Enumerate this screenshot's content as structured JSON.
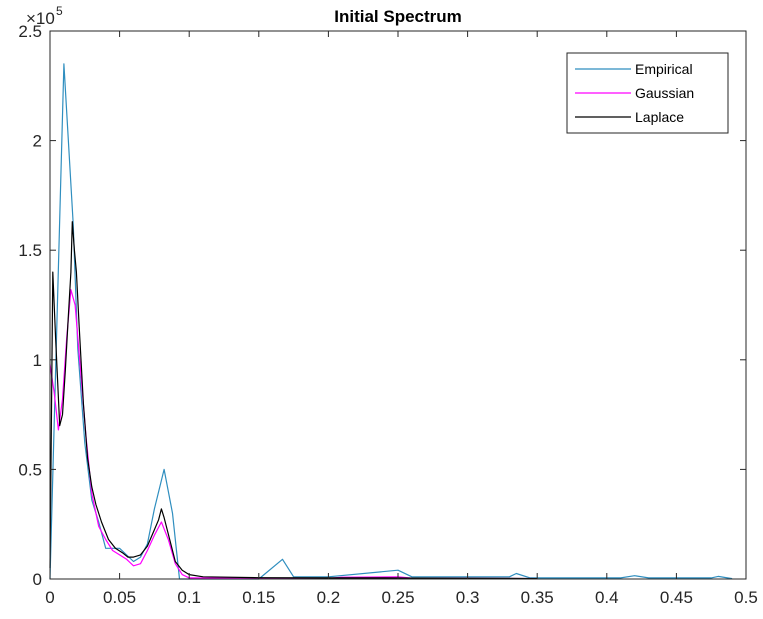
{
  "chart_data": {
    "type": "line",
    "title": "Initial Spectrum",
    "xlabel": "",
    "ylabel": "",
    "xlim": [
      0,
      0.5
    ],
    "ylim": [
      0,
      2.5
    ],
    "y_multiplier_label": "×10",
    "y_multiplier_exponent": "5",
    "x_ticks": [
      "0",
      "0.05",
      "0.1",
      "0.15",
      "0.2",
      "0.25",
      "0.3",
      "0.35",
      "0.4",
      "0.45",
      "0.5"
    ],
    "y_ticks": [
      "0",
      "0.5",
      "1",
      "1.5",
      "2",
      "2.5"
    ],
    "grid": false,
    "legend_position": "top-right",
    "series": [
      {
        "name": "Empirical",
        "color": "#2f8ebf",
        "points": [
          [
            0,
            0
          ],
          [
            0.01,
            2.35
          ],
          [
            0.0167,
            1.62
          ],
          [
            0.02,
            1.05
          ],
          [
            0.025,
            0.62
          ],
          [
            0.03,
            0.36
          ],
          [
            0.035,
            0.26
          ],
          [
            0.04,
            0.14
          ],
          [
            0.05,
            0.14
          ],
          [
            0.055,
            0.11
          ],
          [
            0.06,
            0.08
          ],
          [
            0.065,
            0.1
          ],
          [
            0.07,
            0.16
          ],
          [
            0.075,
            0.32
          ],
          [
            0.082,
            0.5
          ],
          [
            0.088,
            0.3
          ],
          [
            0.093,
            0.0
          ],
          [
            0.15,
            0.0
          ],
          [
            0.167,
            0.09
          ],
          [
            0.175,
            0.01
          ],
          [
            0.2,
            0.01
          ],
          [
            0.25,
            0.04
          ],
          [
            0.26,
            0.01
          ],
          [
            0.33,
            0.01
          ],
          [
            0.335,
            0.025
          ],
          [
            0.345,
            0.005
          ],
          [
            0.41,
            0.005
          ],
          [
            0.42,
            0.015
          ],
          [
            0.43,
            0.005
          ],
          [
            0.475,
            0.005
          ],
          [
            0.48,
            0.012
          ],
          [
            0.49,
            0.002
          ]
        ]
      },
      {
        "name": "Gaussian",
        "color": "#ff00ff",
        "points": [
          [
            0,
            0.98
          ],
          [
            0.003,
            0.85
          ],
          [
            0.006,
            0.68
          ],
          [
            0.009,
            0.82
          ],
          [
            0.012,
            1.1
          ],
          [
            0.015,
            1.32
          ],
          [
            0.018,
            1.25
          ],
          [
            0.022,
            0.95
          ],
          [
            0.026,
            0.64
          ],
          [
            0.03,
            0.39
          ],
          [
            0.035,
            0.24
          ],
          [
            0.04,
            0.18
          ],
          [
            0.045,
            0.13
          ],
          [
            0.05,
            0.11
          ],
          [
            0.055,
            0.09
          ],
          [
            0.06,
            0.06
          ],
          [
            0.065,
            0.07
          ],
          [
            0.07,
            0.13
          ],
          [
            0.075,
            0.2
          ],
          [
            0.08,
            0.26
          ],
          [
            0.085,
            0.18
          ],
          [
            0.09,
            0.07
          ],
          [
            0.095,
            0.02
          ],
          [
            0.1,
            0.005
          ],
          [
            0.15,
            0.003
          ],
          [
            0.2,
            0.003
          ],
          [
            0.21,
            0.008
          ],
          [
            0.25,
            0.01
          ],
          [
            0.26,
            0.004
          ],
          [
            0.3,
            0.003
          ],
          [
            0.35,
            0.002
          ]
        ]
      },
      {
        "name": "Laplace",
        "color": "#000000",
        "points": [
          [
            0,
            0.05
          ],
          [
            0.002,
            1.4
          ],
          [
            0.004,
            1.1
          ],
          [
            0.007,
            0.7
          ],
          [
            0.009,
            0.75
          ],
          [
            0.011,
            0.95
          ],
          [
            0.013,
            1.18
          ],
          [
            0.015,
            1.4
          ],
          [
            0.016,
            1.63
          ],
          [
            0.0175,
            1.5
          ],
          [
            0.019,
            1.4
          ],
          [
            0.021,
            1.15
          ],
          [
            0.024,
            0.8
          ],
          [
            0.027,
            0.55
          ],
          [
            0.03,
            0.42
          ],
          [
            0.033,
            0.34
          ],
          [
            0.037,
            0.26
          ],
          [
            0.042,
            0.18
          ],
          [
            0.047,
            0.14
          ],
          [
            0.052,
            0.12
          ],
          [
            0.056,
            0.1
          ],
          [
            0.06,
            0.1
          ],
          [
            0.065,
            0.11
          ],
          [
            0.07,
            0.15
          ],
          [
            0.074,
            0.21
          ],
          [
            0.078,
            0.27
          ],
          [
            0.08,
            0.32
          ],
          [
            0.082,
            0.28
          ],
          [
            0.086,
            0.18
          ],
          [
            0.09,
            0.08
          ],
          [
            0.095,
            0.04
          ],
          [
            0.1,
            0.02
          ],
          [
            0.11,
            0.01
          ],
          [
            0.15,
            0.006
          ],
          [
            0.2,
            0.005
          ],
          [
            0.24,
            0.005
          ],
          [
            0.26,
            0.004
          ],
          [
            0.33,
            0.003
          ],
          [
            0.35,
            0.002
          ]
        ]
      }
    ]
  }
}
